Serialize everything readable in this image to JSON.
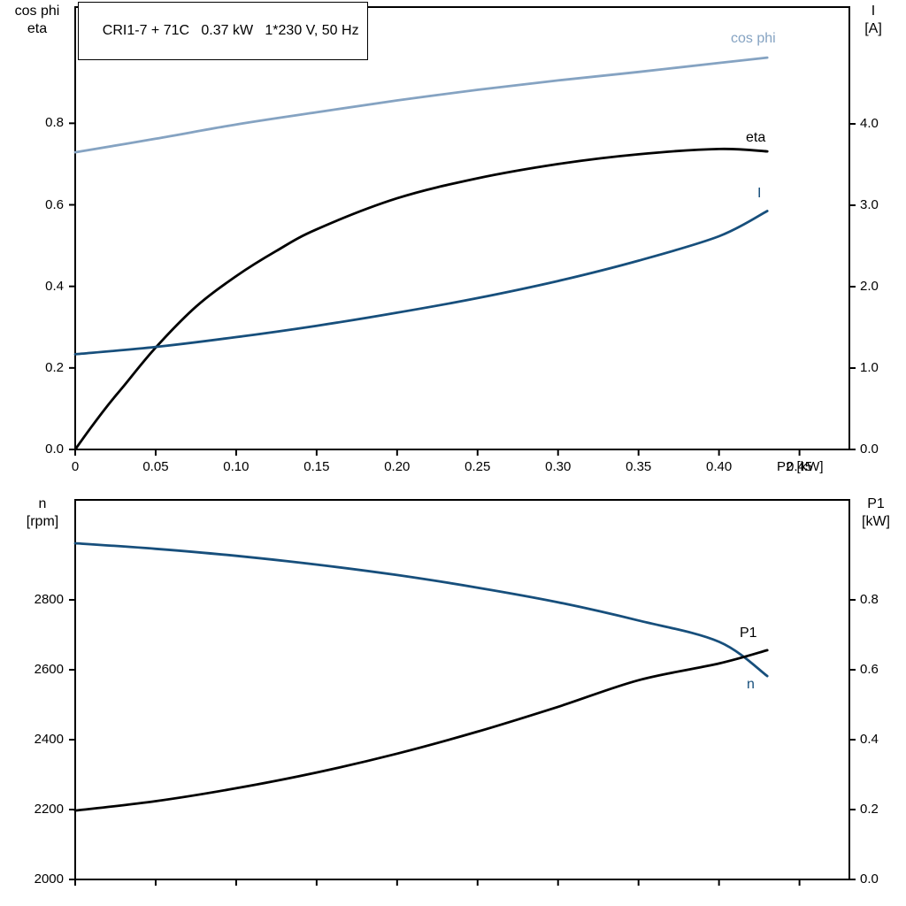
{
  "title": "CRI1-7 + 71C   0.37 kW   1*230 V, 50 Hz",
  "colors": {
    "black": "#000000",
    "dark_blue": "#174f7c",
    "light_blue": "#85a3c2"
  },
  "chart_data": [
    {
      "type": "line",
      "name": "motor-cosphi-eta-current-vs-p2",
      "title": "CRI1-7 + 71C   0.37 kW   1*230 V, 50 Hz",
      "x": {
        "label": "P2 [kW]",
        "lim": [
          0,
          0.481
        ],
        "ticks": [
          0,
          0.05,
          0.1,
          0.15,
          0.2,
          0.25,
          0.3,
          0.35,
          0.4,
          0.45
        ],
        "tick_labels": [
          "0",
          "0.05",
          "0.10",
          "0.15",
          "0.20",
          "0.25",
          "0.30",
          "0.35",
          "0.40",
          "0.45"
        ]
      },
      "y_left": {
        "label": "cos phi / eta",
        "label_lines": [
          "cos phi",
          "eta"
        ],
        "lim": [
          0,
          1.085
        ],
        "ticks": [
          0.0,
          0.2,
          0.4,
          0.6,
          0.8
        ],
        "tick_labels": [
          "0.0",
          "0.2",
          "0.4",
          "0.6",
          "0.8"
        ]
      },
      "y_right": {
        "label": "I [A]",
        "label_lines": [
          "I",
          "[A]"
        ],
        "lim": [
          0,
          5.435
        ],
        "ticks": [
          0.0,
          1.0,
          2.0,
          3.0,
          4.0
        ],
        "tick_labels": [
          "0.0",
          "1.0",
          "2.0",
          "3.0",
          "4.0"
        ]
      },
      "grid": false,
      "series": [
        {
          "name": "cos phi",
          "axis": "left",
          "color": "light_blue",
          "x": [
            0,
            0.05,
            0.1,
            0.15,
            0.2,
            0.25,
            0.3,
            0.35,
            0.4,
            0.43
          ],
          "y": [
            0.729,
            0.762,
            0.797,
            0.827,
            0.856,
            0.882,
            0.905,
            0.926,
            0.948,
            0.961
          ]
        },
        {
          "name": "eta",
          "axis": "left",
          "color": "black",
          "x": [
            0,
            0.01,
            0.02,
            0.03,
            0.05,
            0.075,
            0.1,
            0.125,
            0.15,
            0.2,
            0.25,
            0.3,
            0.35,
            0.4,
            0.43
          ],
          "y": [
            0,
            0.055,
            0.107,
            0.155,
            0.25,
            0.35,
            0.425,
            0.487,
            0.54,
            0.616,
            0.665,
            0.7,
            0.724,
            0.737,
            0.731
          ]
        },
        {
          "name": "I",
          "axis": "right",
          "color": "dark_blue",
          "x": [
            0,
            0.05,
            0.1,
            0.15,
            0.2,
            0.25,
            0.3,
            0.35,
            0.4,
            0.43
          ],
          "y": [
            1.17,
            1.26,
            1.38,
            1.52,
            1.68,
            1.86,
            2.07,
            2.32,
            2.62,
            2.93
          ]
        }
      ]
    },
    {
      "type": "line",
      "name": "speed-and-input-power-vs-p2",
      "x": {
        "label": "",
        "lim": [
          0,
          0.481
        ],
        "ticks": [
          0,
          0.05,
          0.1,
          0.15,
          0.2,
          0.25,
          0.3,
          0.35,
          0.4,
          0.45
        ],
        "tick_labels": []
      },
      "y_left": {
        "label": "n [rpm]",
        "label_lines": [
          "n",
          "[rpm]"
        ],
        "lim": [
          2000,
          3086
        ],
        "ticks": [
          2000,
          2200,
          2400,
          2600,
          2800
        ],
        "tick_labels": [
          "2000",
          "2200",
          "2400",
          "2600",
          "2800"
        ]
      },
      "y_right": {
        "label": "P1 [kW]",
        "label_lines": [
          "P1",
          "[kW]"
        ],
        "lim": [
          0,
          1.086
        ],
        "ticks": [
          0.0,
          0.2,
          0.4,
          0.6,
          0.8
        ],
        "tick_labels": [
          "0.0",
          "0.2",
          "0.4",
          "0.6",
          "0.8"
        ]
      },
      "grid": false,
      "series": [
        {
          "name": "n",
          "axis": "left",
          "color": "dark_blue",
          "x": [
            0,
            0.05,
            0.1,
            0.15,
            0.2,
            0.25,
            0.3,
            0.35,
            0.4,
            0.43
          ],
          "y": [
            2962,
            2946,
            2926,
            2901,
            2871,
            2835,
            2793,
            2741,
            2680,
            2582
          ]
        },
        {
          "name": "P1",
          "axis": "right",
          "color": "black",
          "x": [
            0,
            0.05,
            0.1,
            0.15,
            0.2,
            0.25,
            0.3,
            0.35,
            0.4,
            0.43
          ],
          "y": [
            0.197,
            0.224,
            0.261,
            0.306,
            0.36,
            0.423,
            0.494,
            0.57,
            0.618,
            0.656
          ]
        }
      ]
    }
  ]
}
